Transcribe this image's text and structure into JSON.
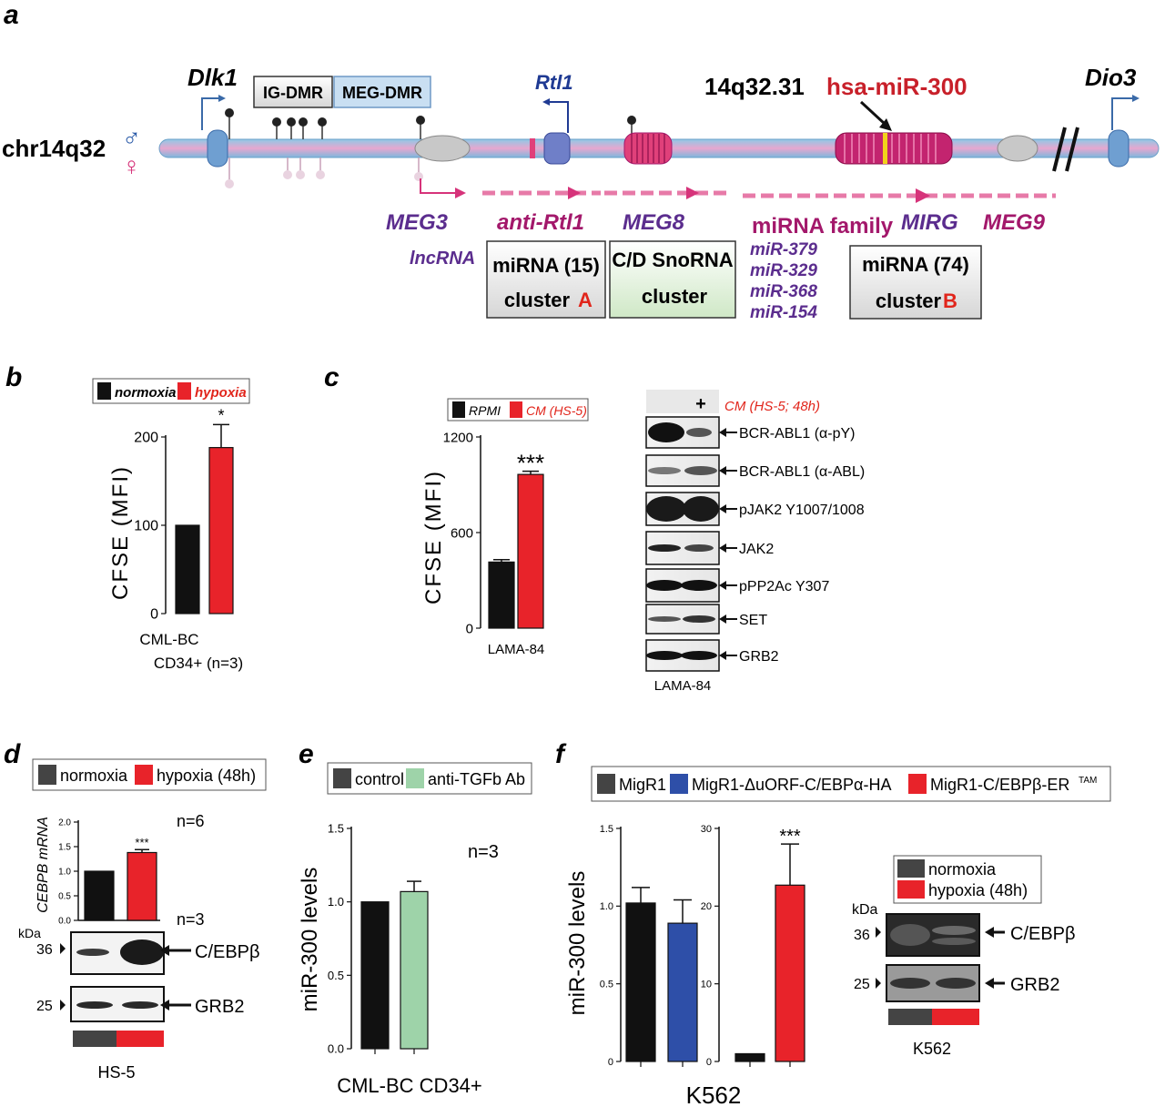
{
  "panel_letters": {
    "a": "a",
    "b": "b",
    "c": "c",
    "d": "d",
    "e": "e",
    "f": "f"
  },
  "colors": {
    "black_bar": "#111111",
    "red_bar": "#e8232a",
    "green_bar": "#9ed3a9",
    "blue_bar": "#2e4fa8",
    "gray_bar": "#444444",
    "purple_text": "#5b2d8e",
    "magenta_text": "#a3186b",
    "red_text": "#e1251b",
    "navy_text": "#1f3a93"
  },
  "panel_a": {
    "chrom_label": "chr14q32",
    "male_symbol": "♂",
    "female_symbol": "♀",
    "dlk1": "Dlk1",
    "ig_dmr": "IG-DMR",
    "meg_dmr": "MEG-DMR",
    "rtl1": "Rtl1",
    "band": "14q32.31",
    "mirna": "hsa-miR-300",
    "dio3": "Dio3",
    "meg3": "MEG3",
    "lncrna": "lncRNA",
    "anti_rtl1": "anti-Rtl1",
    "meg8": "MEG8",
    "mirna_family": "miRNA family",
    "mirg": "MIRG",
    "meg9": "MEG9",
    "family_members": [
      "miR-379",
      "miR-329",
      "miR-368",
      "miR-154"
    ],
    "box_a_line1": "miRNA (15)",
    "box_a_line2": "cluster",
    "box_a_letter": "A",
    "box_snorna_line1": "C/D  SnoRNA",
    "box_snorna_line2": "cluster",
    "box_b_line1": "miRNA (74)",
    "box_b_line2": "cluster",
    "box_b_letter": "B"
  },
  "panel_b": {
    "legend": [
      "normoxia",
      "hypoxia"
    ],
    "ylabel": "CFSE (MFI)",
    "yticks": [
      "0",
      "100",
      "200"
    ],
    "xlabel_line1": "CML-BC",
    "xlabel_line2": "CD34+ (n=3)",
    "significance": "*"
  },
  "panel_c": {
    "legend": [
      "RPMI",
      "CM (HS-5)"
    ],
    "ylabel": "CFSE (MFI)",
    "yticks": [
      "0",
      "600",
      "1200"
    ],
    "xlabel": "LAMA-84",
    "significance": "***",
    "blot_plus": "+",
    "blot_condition": "CM (HS-5; 48h)",
    "blot_labels": [
      "BCR-ABL1 (α-pY)",
      "BCR-ABL1 (α-ABL)",
      "pJAK2  Y1007/1008",
      "JAK2",
      "pPP2Ac Y307",
      "SET",
      "GRB2"
    ],
    "blot_cell": "LAMA-84"
  },
  "panel_d": {
    "legend": [
      "normoxia",
      "hypoxia (48h)"
    ],
    "ylabel": "CEBPB mRNA",
    "yticks": [
      "0.0",
      "0.5",
      "1.0",
      "1.5",
      "2.0"
    ],
    "significance": "***",
    "n_top": "n=6",
    "n_blot": "n=3",
    "kda": "kDa",
    "mw": [
      "36",
      "25"
    ],
    "blot_labels": [
      "C/EBPβ",
      "GRB2"
    ],
    "cell": "HS-5"
  },
  "panel_e": {
    "legend": [
      "control",
      "anti-TGFb Ab"
    ],
    "ylabel": "miR-300 levels",
    "yticks": [
      "0.0",
      "0.5",
      "1.0",
      "1.5"
    ],
    "n": "n=3",
    "xlabel": "CML-BC CD34+"
  },
  "panel_f": {
    "legend": [
      "MigR1",
      "MigR1-ΔuORF-C/EBPα-HA",
      "MigR1-C/EBPβ-ER"
    ],
    "legend_super": "TAM",
    "ylabel": "miR-300 levels",
    "yticks_left": [
      "0",
      "0.5",
      "1.0",
      "1.5"
    ],
    "yticks_right": [
      "0",
      "10",
      "20",
      "30"
    ],
    "significance": "***",
    "xlabel": "K562",
    "blot_legend": [
      "normoxia",
      "hypoxia (48h)"
    ],
    "kda": "kDa",
    "mw": [
      "36",
      "25"
    ],
    "blot_labels": [
      "C/EBPβ",
      "GRB2"
    ],
    "blot_cell": "K562"
  },
  "chart_data": [
    {
      "panel": "b",
      "type": "bar",
      "title": "",
      "xlabel": "CML-BC CD34+ (n=3)",
      "ylabel": "CFSE (MFI)",
      "ylim": [
        0,
        200
      ],
      "categories": [
        "normoxia",
        "hypoxia"
      ],
      "values": [
        100,
        188
      ],
      "errors": [
        0,
        26
      ]
    },
    {
      "panel": "c",
      "type": "bar",
      "title": "",
      "xlabel": "LAMA-84",
      "ylabel": "CFSE (MFI)",
      "ylim": [
        0,
        1200
      ],
      "categories": [
        "RPMI",
        "CM (HS-5)"
      ],
      "values": [
        415,
        965
      ],
      "errors": [
        15,
        20
      ]
    },
    {
      "panel": "d",
      "type": "bar",
      "title": "",
      "xlabel": "",
      "ylabel": "CEBPB mRNA",
      "ylim": [
        0,
        2.0
      ],
      "categories": [
        "normoxia",
        "hypoxia (48h)"
      ],
      "values": [
        1.0,
        1.38
      ],
      "errors": [
        0,
        0.06
      ]
    },
    {
      "panel": "e",
      "type": "bar",
      "title": "",
      "xlabel": "CML-BC CD34+",
      "ylabel": "miR-300 levels",
      "ylim": [
        0,
        1.5
      ],
      "categories": [
        "control",
        "anti-TGFb Ab"
      ],
      "values": [
        1.0,
        1.07
      ],
      "errors": [
        0,
        0.07
      ]
    },
    {
      "panel": "f-left",
      "type": "bar",
      "title": "",
      "xlabel": "K562",
      "ylabel": "miR-300 levels",
      "ylim": [
        0,
        1.5
      ],
      "categories": [
        "MigR1",
        "MigR1-ΔuORF-C/EBPα-HA"
      ],
      "values": [
        1.02,
        0.89
      ],
      "errors": [
        0.1,
        0.15
      ]
    },
    {
      "panel": "f-right",
      "type": "bar",
      "title": "",
      "xlabel": "K562",
      "ylabel": "miR-300 levels",
      "ylim": [
        0,
        30
      ],
      "categories": [
        "MigR1",
        "MigR1-C/EBPβ-ER"
      ],
      "values": [
        1.0,
        22.7
      ],
      "errors": [
        0,
        5.3
      ]
    }
  ]
}
